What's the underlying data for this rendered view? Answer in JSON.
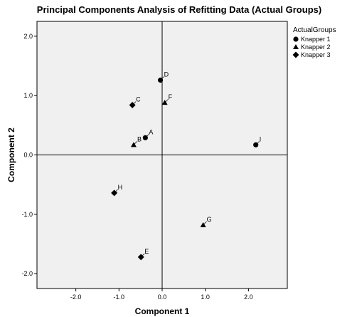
{
  "chart_data": {
    "type": "scatter",
    "title": "Principal Components Analysis of Refitting Data (Actual Groups)",
    "xlabel": "Component 1",
    "ylabel": "Component 2",
    "xlim": [
      -2.9,
      2.9
    ],
    "ylim": [
      -2.25,
      2.25
    ],
    "xticks": [
      "-2.0",
      "-1.0",
      "0.0",
      "1.0",
      "2.0"
    ],
    "yticks": [
      "2.0",
      "1.0",
      "0.0",
      "-1.0",
      "-2.0"
    ],
    "reference_lines": {
      "x": 0,
      "y": 0
    },
    "plot_background": "#f0f0f0",
    "legend": {
      "title": "ActualGroups",
      "position": "top-right",
      "entries": [
        {
          "name": "Knapper 1",
          "marker": "circle"
        },
        {
          "name": "Knapper 2",
          "marker": "triangle"
        },
        {
          "name": "Knapper 3",
          "marker": "diamond"
        }
      ]
    },
    "series": [
      {
        "name": "Knapper 1",
        "marker": "circle",
        "points": [
          {
            "label": "D",
            "x": -0.04,
            "y": 1.26
          },
          {
            "label": "A",
            "x": -0.39,
            "y": 0.29
          },
          {
            "label": "I",
            "x": 2.17,
            "y": 0.17
          }
        ]
      },
      {
        "name": "Knapper 2",
        "marker": "triangle",
        "points": [
          {
            "label": "F",
            "x": 0.06,
            "y": 0.88
          },
          {
            "label": "B",
            "x": -0.66,
            "y": 0.17
          },
          {
            "label": "G",
            "x": 0.95,
            "y": -1.18
          }
        ]
      },
      {
        "name": "Knapper 3",
        "marker": "diamond",
        "points": [
          {
            "label": "C",
            "x": -0.69,
            "y": 0.84
          },
          {
            "label": "H",
            "x": -1.11,
            "y": -0.64
          },
          {
            "label": "E",
            "x": -0.49,
            "y": -1.72
          }
        ]
      }
    ]
  }
}
